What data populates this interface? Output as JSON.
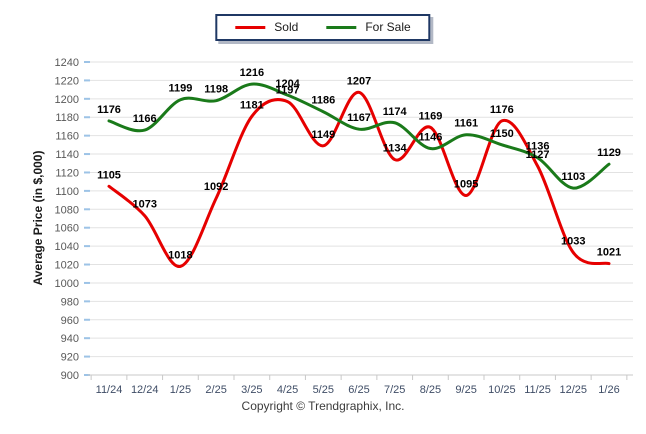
{
  "footer": {
    "copyright": "Copyright © Trendgraphix, Inc."
  },
  "chart_data": {
    "type": "line",
    "title": "",
    "xlabel": "",
    "ylabel": "Average Price (in $,000)",
    "categories": [
      "11/24",
      "12/24",
      "1/25",
      "2/25",
      "3/25",
      "4/25",
      "5/25",
      "6/25",
      "7/25",
      "8/25",
      "9/25",
      "10/25",
      "11/25",
      "12/25",
      "1/26"
    ],
    "series": [
      {
        "name": "Sold",
        "color": "#e60000",
        "values": [
          1105,
          1073,
          1018,
          1092,
          1181,
          1197,
          1149,
          1207,
          1134,
          1169,
          1095,
          1176,
          1127,
          1033,
          1021
        ]
      },
      {
        "name": "For Sale",
        "color": "#1a7a1a",
        "values": [
          1176,
          1166,
          1199,
          1198,
          1216,
          1204,
          1186,
          1167,
          1174,
          1146,
          1161,
          1150,
          1136,
          1103,
          1129
        ]
      }
    ],
    "ylim": [
      900,
      1240
    ],
    "y_tick_step": 20,
    "grid": "horizontal",
    "grid_color": "#e2e2e2",
    "axis_line_color": "#c8c8c8",
    "y_axis_tick_color": "#9dc3e6",
    "legend_position": "top-center",
    "legend_border_color": "#1f3864",
    "data_labels": true
  }
}
